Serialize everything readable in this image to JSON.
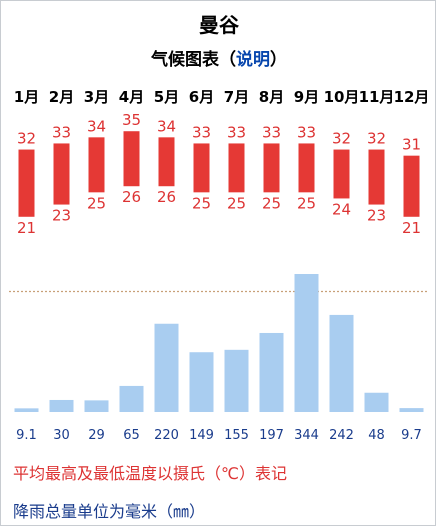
{
  "header": {
    "title": "曼谷",
    "subtitle_prefix": "气候图表（",
    "subtitle_link": "说明",
    "subtitle_suffix": "）"
  },
  "colors": {
    "temp_bar": "#e53935",
    "precip_bar": "#a9cdf0",
    "temp_text": "#dd3333",
    "precip_text": "#1a3c8c"
  },
  "chart_data": {
    "type": "bar",
    "categories": [
      "1月",
      "2月",
      "3月",
      "4月",
      "5月",
      "6月",
      "7月",
      "8月",
      "9月",
      "10月",
      "11月",
      "12月"
    ],
    "series": [
      {
        "values_high": [
          32,
          33,
          34,
          35,
          34,
          33,
          33,
          33,
          33,
          32,
          32,
          31
        ],
        "values_low": [
          21,
          23,
          25,
          26,
          26,
          25,
          25,
          25,
          25,
          24,
          23,
          21
        ]
      },
      {
        "values": [
          9.1,
          30,
          29,
          65,
          220,
          149,
          155,
          197,
          344,
          242,
          48,
          9.7
        ],
        "labels": [
          "9.1",
          "30",
          "29",
          "65",
          "220",
          "149",
          "155",
          "197",
          "344",
          "242",
          "48",
          "9.7"
        ]
      }
    ],
    "temp_range": [
      19,
      37
    ],
    "precip_max": 344
  },
  "notes": {
    "temp_note": "平均最高及最低温度以摄氏（℃）表记",
    "precip_note": "降雨总量单位为毫米（㎜）"
  }
}
